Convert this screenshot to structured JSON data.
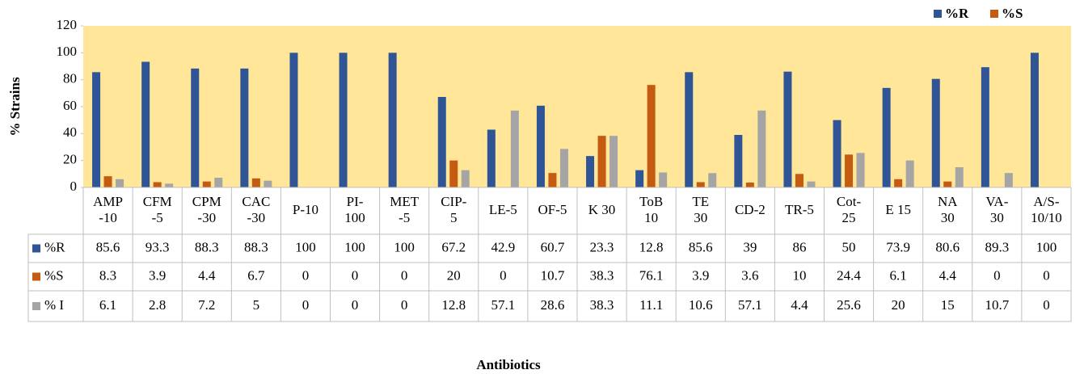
{
  "chart_data": {
    "type": "bar",
    "categories": [
      "AMP\n-10",
      "CFM\n-5",
      "CPM\n-30",
      "CAC\n-30",
      "P-10",
      "PI-\n100",
      "MET\n-5",
      "CIP-\n5",
      "LE-5",
      "OF-5",
      "K 30",
      "ToB\n10",
      "TE\n30",
      "CD-2",
      "TR-5",
      "Cot-\n25",
      "E 15",
      "NA\n30",
      "VA-\n30",
      "A/S-\n10/10"
    ],
    "series": [
      {
        "name": "%R",
        "color": "#2f5597",
        "values": [
          85.6,
          93.3,
          88.3,
          88.3,
          100,
          100,
          100,
          67.2,
          42.9,
          60.7,
          23.3,
          12.8,
          85.6,
          39,
          86,
          50,
          73.9,
          80.6,
          89.3,
          100
        ]
      },
      {
        "name": "%S",
        "color": "#c55a11",
        "values": [
          8.3,
          3.9,
          4.4,
          6.7,
          0,
          0,
          0,
          20,
          0,
          10.7,
          38.3,
          76.1,
          3.9,
          3.6,
          10,
          24.4,
          6.1,
          4.4,
          0,
          0
        ]
      },
      {
        "name": "% I",
        "color": "#a5a5a5",
        "values": [
          6.1,
          2.8,
          7.2,
          5,
          0,
          0,
          0,
          12.8,
          57.1,
          28.6,
          38.3,
          11.1,
          10.6,
          57.1,
          4.4,
          25.6,
          20,
          15,
          10.7,
          0
        ]
      }
    ],
    "ylim": [
      0,
      120
    ],
    "yticks": [
      0,
      20,
      40,
      60,
      80,
      100,
      120
    ],
    "ylabel": "% Strains",
    "xlabel": "Antibiotics",
    "plot_background": "#ffe699"
  }
}
